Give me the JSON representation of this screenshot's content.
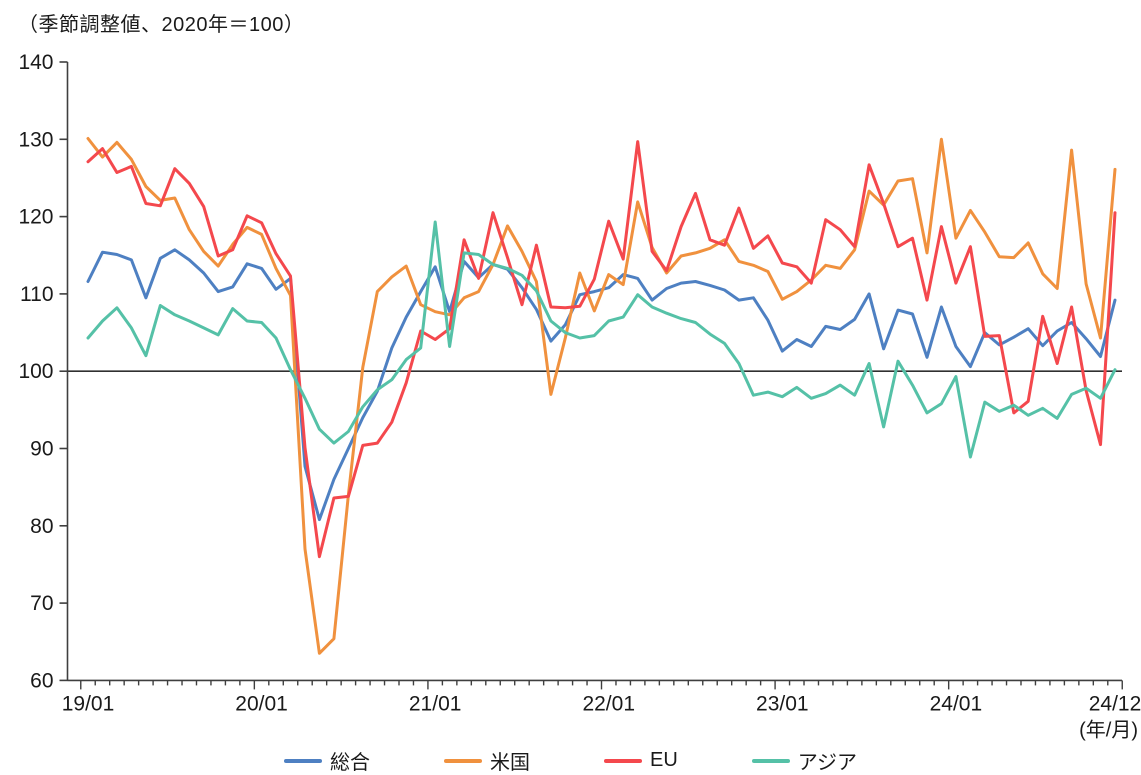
{
  "chart_data": {
    "type": "line",
    "title": "（季節調整値、2020年＝100）",
    "x_unit_label": "(年/月)",
    "frequency": "monthly",
    "x_start": "2019/01",
    "x_end": "2024/12",
    "ylim": [
      60,
      140
    ],
    "y_ticks": [
      60,
      70,
      80,
      90,
      100,
      110,
      120,
      130,
      140
    ],
    "reference_line": 100,
    "grid": false,
    "legend_position": "bottom",
    "x_ticks": [
      {
        "label": "19/01",
        "month": 0
      },
      {
        "label": "20/01",
        "month": 12
      },
      {
        "label": "21/01",
        "month": 24
      },
      {
        "label": "22/01",
        "month": 36
      },
      {
        "label": "23/01",
        "month": 48
      },
      {
        "label": "24/01",
        "month": 60
      },
      {
        "label": "24/12",
        "month": 71
      }
    ],
    "series": [
      {
        "name": "総合",
        "color": "#4E80C2",
        "values": [
          111.6,
          115.4,
          115.1,
          114.4,
          109.5,
          114.6,
          115.7,
          114.4,
          112.7,
          110.3,
          110.9,
          113.9,
          113.3,
          110.6,
          112.0,
          87.7,
          80.8,
          86.0,
          90.0,
          94.0,
          97.4,
          103.0,
          107.0,
          110.3,
          113.5,
          107.7,
          114.2,
          112.1,
          113.8,
          113.2,
          110.8,
          108.0,
          103.9,
          106.0,
          109.9,
          110.3,
          110.8,
          112.5,
          112.0,
          109.2,
          110.7,
          111.4,
          111.6,
          111.1,
          110.5,
          109.2,
          109.5,
          106.6,
          102.6,
          104.1,
          103.2,
          105.8,
          105.4,
          106.7,
          110.0,
          102.9,
          107.9,
          107.4,
          101.8,
          108.3,
          103.2,
          100.6,
          105.0,
          103.4,
          104.4,
          105.5,
          103.3,
          105.2,
          106.3,
          104.2,
          101.9,
          109.2
        ]
      },
      {
        "name": "米国",
        "color": "#F0913E",
        "values": [
          130.1,
          127.7,
          129.6,
          127.4,
          123.9,
          122.1,
          122.4,
          118.3,
          115.5,
          113.6,
          116.4,
          118.6,
          117.7,
          113.3,
          109.8,
          77.0,
          63.5,
          65.4,
          84.0,
          100.5,
          110.3,
          112.2,
          113.6,
          108.6,
          107.7,
          107.3,
          109.5,
          110.3,
          113.8,
          118.8,
          115.5,
          111.6,
          97.0,
          104.3,
          112.7,
          107.8,
          112.5,
          111.2,
          121.9,
          116.0,
          112.7,
          114.9,
          115.3,
          115.9,
          117.0,
          114.2,
          113.7,
          112.9,
          109.3,
          110.3,
          111.8,
          113.7,
          113.3,
          115.7,
          123.3,
          121.5,
          124.6,
          124.9,
          115.3,
          130.0,
          117.2,
          120.8,
          118.0,
          114.8,
          114.7,
          116.6,
          112.6,
          110.7,
          128.6,
          111.3,
          104.3,
          126.1
        ]
      },
      {
        "name": "EU",
        "color": "#F4484D",
        "values": [
          127.1,
          128.8,
          125.7,
          126.5,
          121.7,
          121.4,
          126.2,
          124.3,
          121.3,
          114.9,
          115.7,
          120.1,
          119.2,
          115.2,
          112.3,
          90.1,
          76.0,
          83.6,
          83.8,
          90.4,
          90.7,
          93.4,
          98.5,
          105.2,
          104.1,
          105.5,
          117.0,
          112.0,
          120.5,
          114.7,
          108.6,
          116.3,
          108.3,
          108.2,
          108.4,
          111.9,
          119.4,
          114.5,
          129.7,
          115.5,
          113.0,
          118.7,
          123.0,
          117.0,
          116.3,
          121.1,
          115.9,
          117.5,
          114.0,
          113.5,
          111.4,
          119.6,
          118.3,
          116.1,
          126.7,
          121.7,
          116.1,
          117.2,
          109.2,
          118.7,
          111.4,
          116.1,
          104.5,
          104.6,
          94.6,
          96.1,
          107.1,
          101.0,
          108.3,
          97.5,
          90.5,
          120.5
        ]
      },
      {
        "name": "アジア",
        "color": "#55C1A7",
        "values": [
          104.3,
          106.5,
          108.2,
          105.6,
          102.0,
          108.5,
          107.3,
          106.5,
          105.6,
          104.7,
          108.1,
          106.5,
          106.3,
          104.3,
          100.2,
          96.5,
          92.5,
          90.7,
          92.2,
          95.4,
          97.6,
          98.9,
          101.5,
          103.0,
          119.3,
          103.2,
          115.3,
          115.1,
          113.8,
          113.3,
          112.4,
          110.4,
          106.5,
          105.0,
          104.3,
          104.6,
          106.5,
          107.0,
          109.9,
          108.3,
          107.5,
          106.8,
          106.3,
          104.8,
          103.6,
          101.0,
          96.9,
          97.3,
          96.7,
          97.9,
          96.5,
          97.1,
          98.2,
          96.9,
          101.0,
          92.8,
          101.3,
          98.2,
          94.6,
          95.8,
          99.3,
          88.9,
          96.0,
          94.8,
          95.6,
          94.3,
          95.2,
          93.9,
          97.0,
          97.8,
          96.5,
          100.2
        ]
      }
    ],
    "colors": {
      "axis": "#3f3f3f",
      "reference_line": "#303030",
      "text": "#1a1a1a"
    }
  }
}
